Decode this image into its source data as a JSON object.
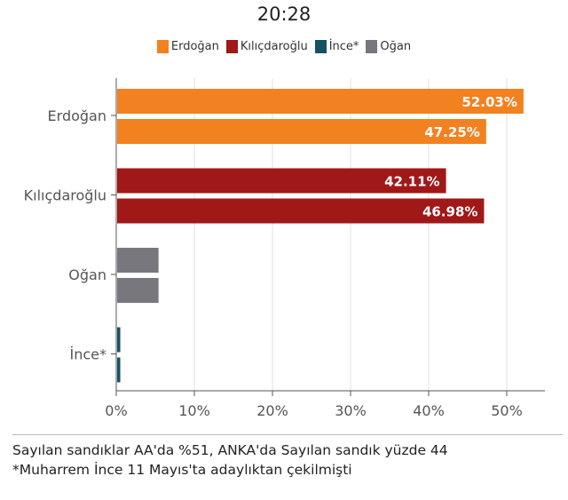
{
  "header": {
    "time": "20:28"
  },
  "colors": {
    "Erdoğan": "#f28120",
    "Kılıçdaroğlu": "#a01818",
    "İnce*": "#14535f",
    "Oğan": "#77777d"
  },
  "chart_data": {
    "type": "bar",
    "orientation": "horizontal",
    "categories": [
      "Erdoğan",
      "Kılıçdaroğlu",
      "Oğan",
      "İnce*"
    ],
    "legend": [
      "Erdoğan",
      "Kılıçdaroğlu",
      "İnce*",
      "Oğan"
    ],
    "legend_position": "top",
    "series_by_category": {
      "Erdoğan": [
        52.03,
        47.25
      ],
      "Kılıçdaroğlu": [
        42.11,
        46.98
      ],
      "Oğan": [
        5.3,
        5.3
      ],
      "İnce*": [
        0.4,
        0.4
      ]
    },
    "data_labels": {
      "Erdoğan": [
        "52.03%",
        "47.25%"
      ],
      "Kılıçdaroğlu": [
        "42.11%",
        "46.98%"
      ]
    },
    "xlim": [
      0,
      55
    ],
    "xticks": [
      "0%",
      "10%",
      "20%",
      "30%",
      "40%",
      "50%"
    ],
    "grid": true
  },
  "footer": {
    "line1": "Sayılan sandıklar AA'da %51, ANKA'da Sayılan sandık yüzde 44",
    "line2": "*Muharrem İnce 11 Mayıs'ta adaylıktan çekilmişti"
  }
}
